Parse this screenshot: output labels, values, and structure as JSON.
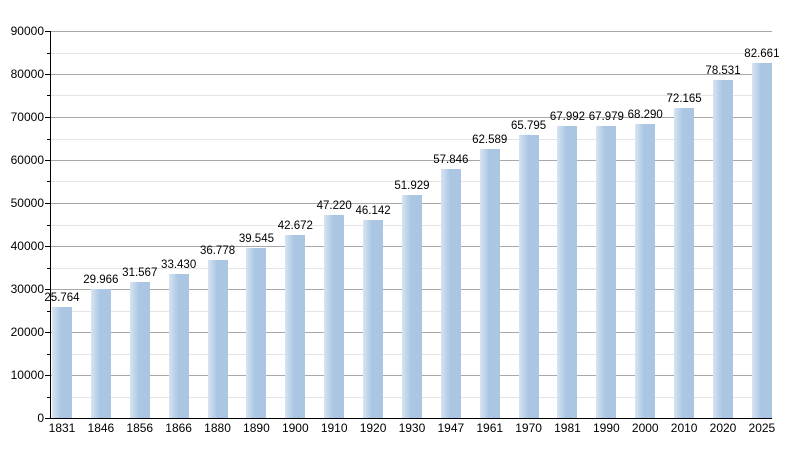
{
  "chart_data": {
    "type": "bar",
    "title": "",
    "xlabel": "",
    "ylabel": "",
    "categories": [
      "1831",
      "1846",
      "1856",
      "1866",
      "1880",
      "1890",
      "1900",
      "1910",
      "1920",
      "1930",
      "1947",
      "1961",
      "1970",
      "1981",
      "1990",
      "2000",
      "2010",
      "2020",
      "2025"
    ],
    "values": [
      25764,
      29966,
      31567,
      33430,
      36778,
      39545,
      42672,
      47220,
      46142,
      51929,
      57846,
      62589,
      65795,
      67992,
      67979,
      68290,
      72165,
      78531,
      82661
    ],
    "value_labels": [
      "25.764",
      "29.966",
      "31.567",
      "33.430",
      "36.778",
      "39.545",
      "42.672",
      "47.220",
      "46.142",
      "51.929",
      "57.846",
      "62.589",
      "65.795",
      "67.992",
      "67.979",
      "68.290",
      "72.165",
      "78.531",
      "82.661"
    ],
    "ylim": [
      0,
      90000
    ],
    "ytick_step": 10000,
    "ytick_minor_step": 5000,
    "ytick_labels": [
      "0",
      "10000",
      "20000",
      "30000",
      "40000",
      "50000",
      "60000",
      "70000",
      "80000",
      "90000"
    ],
    "grid": "horizontal, major and minor, full width",
    "legend": "none",
    "colors": {
      "bar_main": "#aac6e3",
      "bar_light": "#d8e4f3",
      "gridline_major": "#a8a8a8",
      "gridline_minor": "#e4e4e4",
      "axis": "#000000",
      "text": "#000000",
      "background": "#ffffff"
    }
  }
}
